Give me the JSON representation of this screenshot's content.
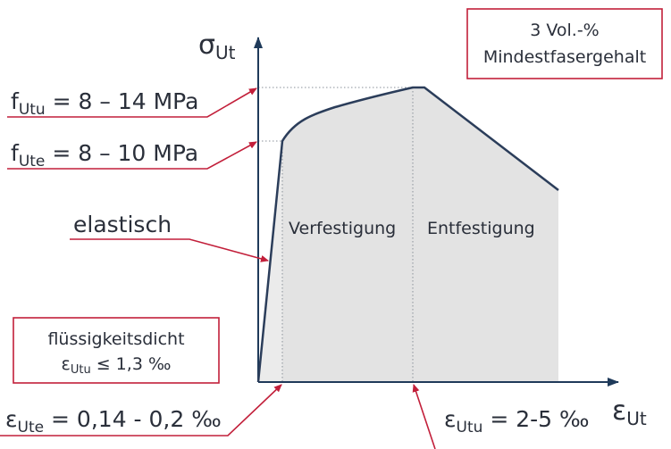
{
  "axes": {
    "y_label": {
      "symbol": "σ",
      "sub": "Ut"
    },
    "x_label": {
      "symbol": "ε",
      "sub": "Ut"
    }
  },
  "labels": {
    "f_utu": {
      "symbol": "f",
      "sub": "Utu",
      "text": " = 8 – 14 MPa"
    },
    "f_ute": {
      "symbol": "f",
      "sub": "Ute",
      "text": " = 8 – 10 MPa"
    },
    "elastic": "elastisch",
    "eps_ute": {
      "symbol": "ε",
      "sub": "Ute",
      "text": " = 0,14 - 0,2 ‰"
    },
    "eps_utu": {
      "symbol": "ε",
      "sub": "Utu",
      "text": " = 2-5 ‰"
    }
  },
  "regions": {
    "hardening": "Verfestigung",
    "softening": "Entfestigung"
  },
  "box_fiber": {
    "line1": "3 Vol.-%",
    "line2": "Mindestfasergehalt"
  },
  "box_tight": {
    "line1": "flüssigkeitsdicht",
    "symbol": "ε",
    "sub": "Utu",
    "text": " ≤ 1,3 ‰"
  }
}
